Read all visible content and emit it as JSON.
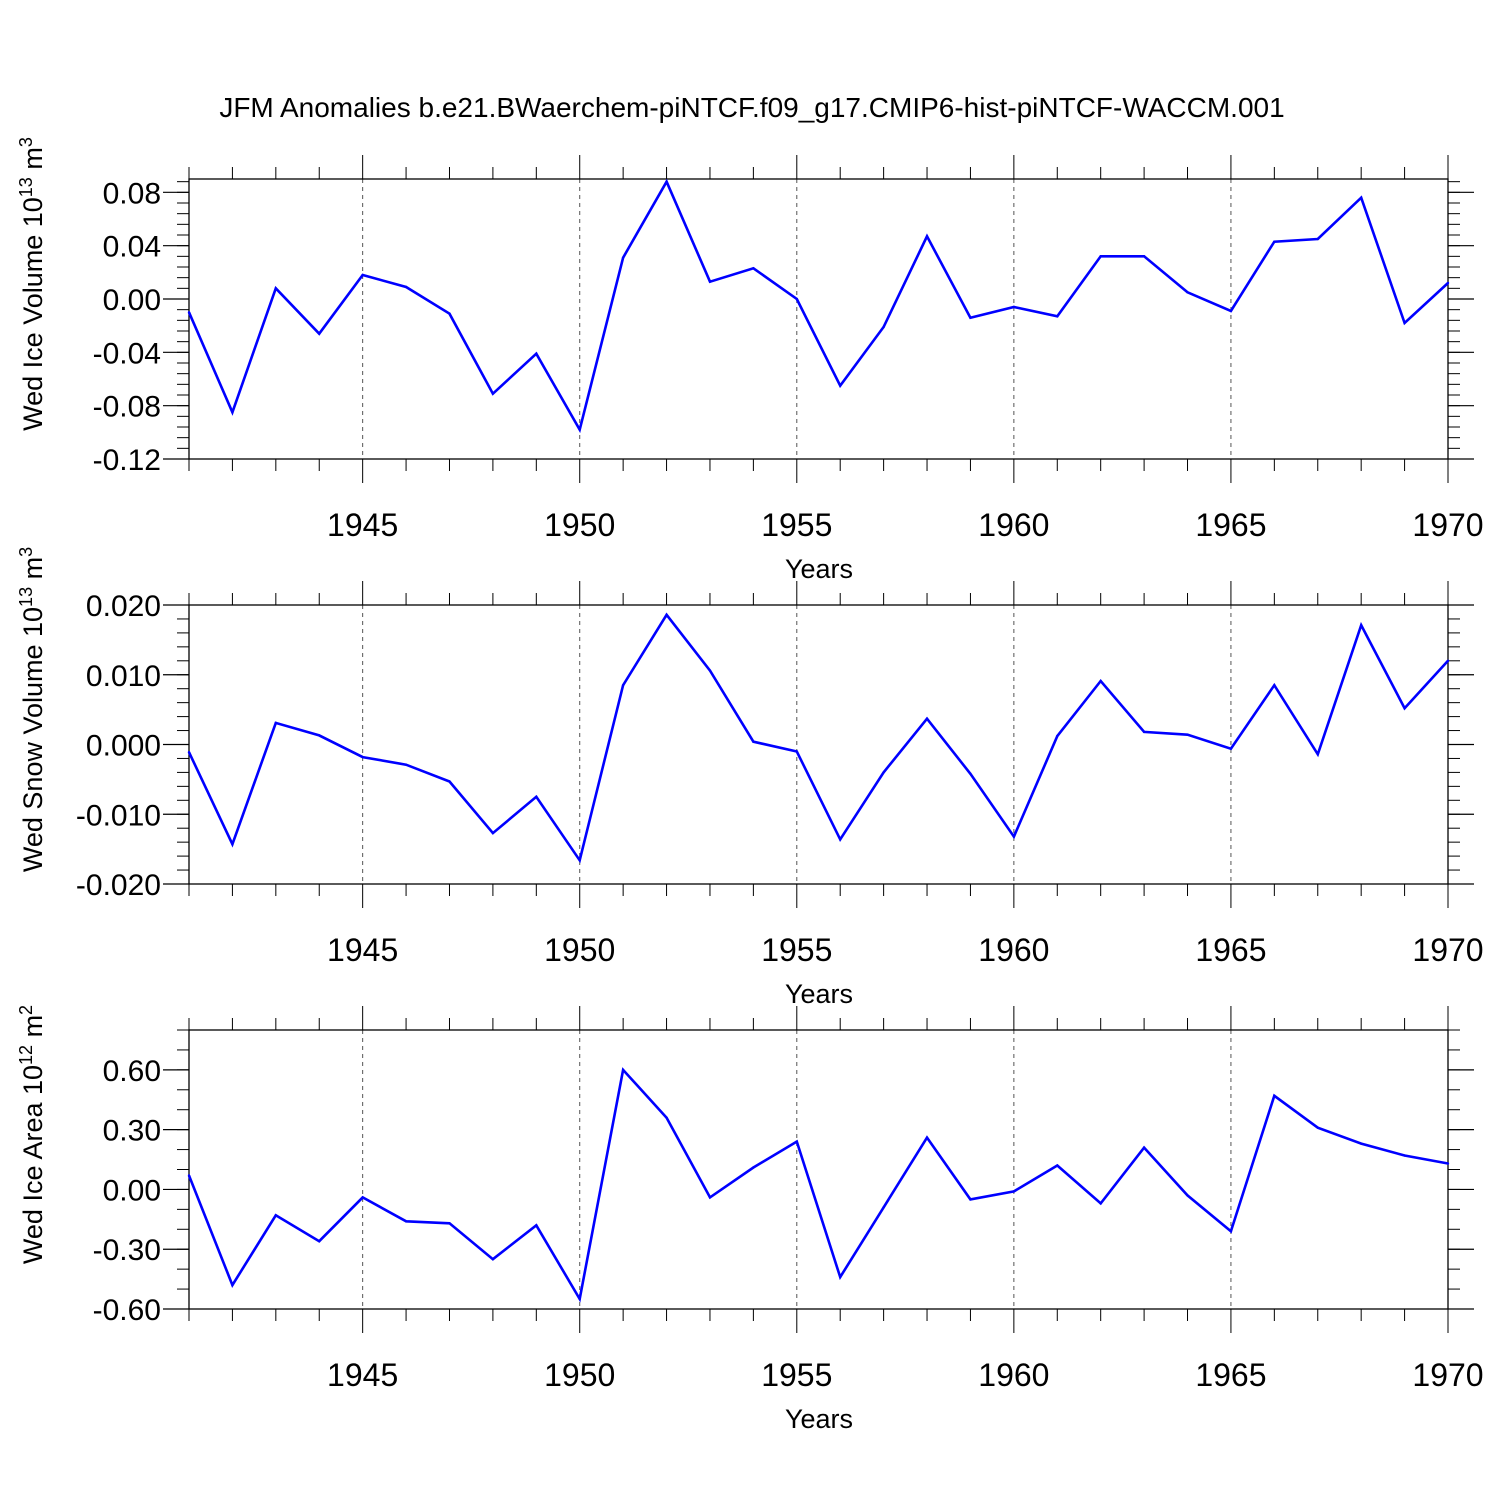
{
  "title": "JFM Anomalies b.e21.BWaerchem-piNTCF.f09_g17.CMIP6-hist-piNTCF-WACCM.001",
  "colors": {
    "line": "#0000ff",
    "axis": "#000000",
    "grid": "#555555"
  },
  "chart_data": [
    {
      "type": "line",
      "id": "ice-volume",
      "ylabel": {
        "prefix": "Wed Ice Volume 10",
        "exp1": "13",
        "mid": " m",
        "exp2": "3"
      },
      "xlabel": "Years",
      "xlim": [
        1941,
        1970
      ],
      "ylim": [
        -0.12,
        0.09
      ],
      "yticks": [
        -0.12,
        -0.08,
        -0.04,
        0.0,
        0.04,
        0.08
      ],
      "ytick_labels": [
        "-0.12",
        "-0.08",
        "-0.04",
        "0.00",
        "0.04",
        "0.08"
      ],
      "yminor_step": 0.008,
      "xticks": [
        1945,
        1950,
        1955,
        1960,
        1965,
        1970
      ],
      "xtick_labels": [
        "1945",
        "1950",
        "1955",
        "1960",
        "1965",
        "1970"
      ],
      "series": [
        {
          "name": "Wed Ice Volume",
          "x": [
            1941,
            1942,
            1943,
            1944,
            1945,
            1946,
            1947,
            1948,
            1949,
            1950,
            1951,
            1952,
            1953,
            1954,
            1955,
            1956,
            1957,
            1958,
            1959,
            1960,
            1961,
            1962,
            1963,
            1964,
            1965,
            1966,
            1967,
            1968,
            1969,
            1970
          ],
          "values": [
            -0.01,
            -0.085,
            0.008,
            -0.026,
            0.018,
            0.009,
            -0.011,
            -0.071,
            -0.041,
            -0.098,
            0.031,
            0.088,
            0.013,
            0.023,
            0.0,
            -0.065,
            -0.021,
            0.047,
            -0.014,
            -0.006,
            -0.013,
            0.032,
            0.032,
            0.005,
            -0.009,
            0.043,
            0.045,
            0.076,
            -0.018,
            0.012
          ]
        }
      ]
    },
    {
      "type": "line",
      "id": "snow-volume",
      "ylabel": {
        "prefix": "Wed Snow Volume 10",
        "exp1": "13",
        "mid": " m",
        "exp2": "3"
      },
      "xlabel": "Years",
      "xlim": [
        1941,
        1970
      ],
      "ylim": [
        -0.02,
        0.02
      ],
      "yticks": [
        -0.02,
        -0.01,
        0.0,
        0.01,
        0.02
      ],
      "ytick_labels": [
        "-0.020",
        "-0.010",
        "0.000",
        "0.010",
        "0.020"
      ],
      "yminor_step": 0.002,
      "xticks": [
        1945,
        1950,
        1955,
        1960,
        1965,
        1970
      ],
      "xtick_labels": [
        "1945",
        "1950",
        "1955",
        "1960",
        "1965",
        "1970"
      ],
      "series": [
        {
          "name": "Wed Snow Volume",
          "x": [
            1941,
            1942,
            1943,
            1944,
            1945,
            1946,
            1947,
            1948,
            1949,
            1950,
            1951,
            1952,
            1953,
            1954,
            1955,
            1956,
            1957,
            1958,
            1959,
            1960,
            1961,
            1962,
            1963,
            1964,
            1965,
            1966,
            1967,
            1968,
            1969,
            1970
          ],
          "values": [
            -0.0011,
            -0.0143,
            0.0031,
            0.0013,
            -0.0018,
            -0.0029,
            -0.0053,
            -0.0127,
            -0.0075,
            -0.0166,
            0.0085,
            0.0186,
            0.0106,
            0.0004,
            -0.001,
            -0.0136,
            -0.004,
            0.0037,
            -0.0042,
            -0.0132,
            0.0012,
            0.0091,
            0.0018,
            0.0014,
            -0.0006,
            0.0085,
            -0.0014,
            0.0171,
            0.0052,
            0.012
          ]
        }
      ]
    },
    {
      "type": "line",
      "id": "ice-area",
      "ylabel": {
        "prefix": "Wed Ice Area 10",
        "exp1": "12",
        "mid": " m",
        "exp2": "2"
      },
      "xlabel": "Years",
      "xlim": [
        1941,
        1970
      ],
      "ylim": [
        -0.6,
        0.8
      ],
      "yticks": [
        -0.6,
        -0.3,
        0.0,
        0.3,
        0.6
      ],
      "ytick_labels": [
        "-0.60",
        "-0.30",
        "0.00",
        "0.30",
        "0.60"
      ],
      "yminor_step": 0.1,
      "xticks": [
        1945,
        1950,
        1955,
        1960,
        1965,
        1970
      ],
      "xtick_labels": [
        "1945",
        "1950",
        "1955",
        "1960",
        "1965",
        "1970"
      ],
      "series": [
        {
          "name": "Wed Ice Area",
          "x": [
            1941,
            1942,
            1943,
            1944,
            1945,
            1946,
            1947,
            1948,
            1949,
            1950,
            1951,
            1952,
            1953,
            1954,
            1955,
            1956,
            1957,
            1958,
            1959,
            1960,
            1961,
            1962,
            1963,
            1964,
            1965,
            1966,
            1967,
            1968,
            1969,
            1970
          ],
          "values": [
            0.07,
            -0.48,
            -0.13,
            -0.26,
            -0.04,
            -0.16,
            -0.17,
            -0.35,
            -0.18,
            -0.55,
            0.6,
            0.36,
            -0.04,
            0.11,
            0.24,
            -0.44,
            -0.09,
            0.26,
            -0.05,
            -0.01,
            0.12,
            -0.07,
            0.21,
            -0.03,
            -0.21,
            0.47,
            0.31,
            0.23,
            0.17,
            0.13
          ]
        }
      ]
    }
  ]
}
